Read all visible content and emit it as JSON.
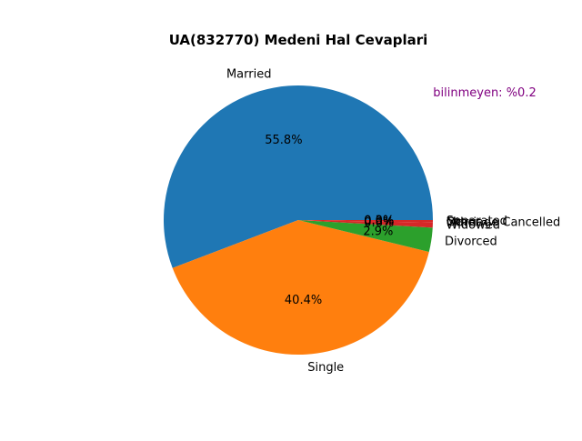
{
  "chart_data": {
    "type": "pie",
    "title": "UA(832770) Medeni Hal Cevaplari",
    "annotation": "bilinmeyen: %0.2",
    "annotation_color": "#800080",
    "categories": [
      "Married",
      "Single",
      "Divorced",
      "Widowed",
      "Other",
      "Marriage Cancelled",
      "Separated"
    ],
    "values": [
      55.8,
      40.4,
      2.9,
      0.6,
      0.0,
      0.0,
      0.3
    ],
    "percent_labels": [
      "55.8%",
      "40.4%",
      "2.9%",
      "0.6%",
      "0.0%",
      "0.0%",
      "0.3%"
    ],
    "colors": [
      "#1f77b4",
      "#ff7f0e",
      "#2ca02c",
      "#d62728",
      "#9467bd",
      "#8c564b",
      "#d62728"
    ],
    "start_angle_deg": 0,
    "direction": "counterclockwise",
    "legend": "none"
  }
}
